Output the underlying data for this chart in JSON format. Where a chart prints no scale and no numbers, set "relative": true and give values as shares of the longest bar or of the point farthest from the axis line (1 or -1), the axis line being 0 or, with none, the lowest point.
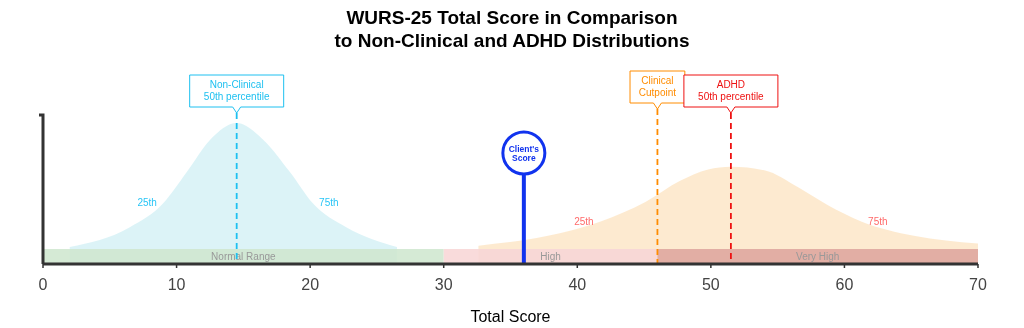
{
  "chart_data": {
    "type": "area",
    "title": "WURS-25 Total Score in Comparison\nto Non-Clinical and ADHD Distributions",
    "xlabel": "Total Score",
    "relative": true,
    "xlim": [
      0,
      70
    ],
    "xticks": [
      0,
      10,
      20,
      30,
      40,
      50,
      60,
      70
    ],
    "grid": false,
    "series": [
      {
        "color": "#d6f1f6",
        "x": [
          2,
          6.5,
          9,
          10.75,
          12.5,
          14.5,
          16.5,
          18.5,
          20.2,
          22.7,
          26.5
        ],
        "values": [
          0.12,
          0.26,
          0.43,
          0.65,
          0.88,
          1,
          0.88,
          0.65,
          0.43,
          0.26,
          0.12
        ]
      },
      {
        "color": "#fde6c8",
        "x": [
          32.6,
          37.8,
          41.7,
          45.1,
          47.7,
          49.8,
          51.5,
          54,
          56.6,
          58.7,
          61.3,
          65.2,
          70
        ],
        "values": [
          0.13,
          0.2,
          0.3,
          0.44,
          0.59,
          0.67,
          0.69,
          0.665,
          0.54,
          0.42,
          0.3,
          0.2,
          0.145
        ]
      }
    ],
    "bands": [
      {
        "axis": "x",
        "from": 0,
        "to": 30,
        "label": "Normal Range",
        "color": "#d0e8d0"
      },
      {
        "axis": "x",
        "from": 30,
        "to": 46,
        "label": "High",
        "color": "#f8d7d7"
      },
      {
        "axis": "x",
        "from": 46,
        "to": 70,
        "label": "Very High",
        "color": "#e0a8a0"
      }
    ],
    "ref_lines": [
      {
        "axis": "x",
        "value": 14.5,
        "label": "Non-Clinical\n50th percentile",
        "color": "#1ec0f0",
        "line_style": "dashed"
      },
      {
        "axis": "x",
        "value": 46,
        "label": "Clinical\nCutpoint",
        "color": "#ff8c00",
        "line_style": "dashed"
      },
      {
        "axis": "x",
        "value": 51.5,
        "label": "ADHD\n50th percentile",
        "color": "#ee1111",
        "line_style": "dashed"
      },
      {
        "axis": "x",
        "value": 36,
        "label": "Client's\nScore",
        "color": "#1133ee",
        "line_style": "solid"
      }
    ],
    "annotations": [
      "25th",
      "75th",
      "25th",
      "75th"
    ]
  }
}
